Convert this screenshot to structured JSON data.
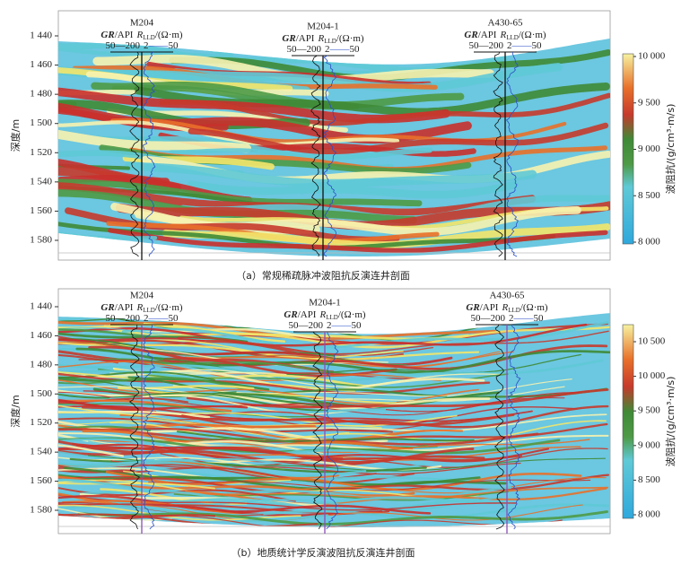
{
  "panels": [
    {
      "caption": "（a）常规稀疏脉冲波阻抗反演连井剖面",
      "y_axis_label": "深度/m",
      "depth_ticks": [
        {
          "value": 1440,
          "label": "1 440"
        },
        {
          "value": 1460,
          "label": "1 460"
        },
        {
          "value": 1480,
          "label": "1 480"
        },
        {
          "value": 1500,
          "label": "1 500"
        },
        {
          "value": 1520,
          "label": "1 520"
        },
        {
          "value": 1540,
          "label": "1 540"
        },
        {
          "value": 1560,
          "label": "1 560"
        },
        {
          "value": 1580,
          "label": "1 580"
        }
      ],
      "colorbar": {
        "label": "波阻抗/(g/cm³·m/s)",
        "ticks": [
          {
            "value": 8000,
            "label": "8 000"
          },
          {
            "value": 8500,
            "label": "8 500"
          },
          {
            "value": 9000,
            "label": "9 000"
          },
          {
            "value": 9500,
            "label": "9 500"
          },
          {
            "value": 10000,
            "label": "10 000"
          }
        ]
      },
      "wells": [
        {
          "name": "M204",
          "gr_label": "GR",
          "gr_unit": "/API",
          "rt_label": "R",
          "rt_sub": "LLD",
          "rt_unit": "/(Ω·m)",
          "gr_range": "50—200",
          "rt_min": "2",
          "rt_max": "50"
        },
        {
          "name": "M204-1",
          "gr_label": "GR",
          "gr_unit": "/API",
          "rt_label": "R",
          "rt_sub": "LLD",
          "rt_unit": "/(Ω·m)",
          "gr_range": "50—200",
          "rt_min": "2",
          "rt_max": "50"
        },
        {
          "name": "A430-65",
          "gr_label": "GR",
          "gr_unit": "/API",
          "rt_label": "R",
          "rt_sub": "LLD",
          "rt_unit": "/(Ω·m)",
          "gr_range": "50—200",
          "rt_min": "2",
          "rt_max": "50"
        }
      ]
    },
    {
      "caption": "（b）地质统计学反演波阻抗反演连井剖面",
      "y_axis_label": "深度/m",
      "depth_ticks": [
        {
          "value": 1440,
          "label": "1 440"
        },
        {
          "value": 1460,
          "label": "1 460"
        },
        {
          "value": 1480,
          "label": "1 480"
        },
        {
          "value": 1500,
          "label": "1 500"
        },
        {
          "value": 1520,
          "label": "1 520"
        },
        {
          "value": 1540,
          "label": "1 540"
        },
        {
          "value": 1560,
          "label": "1 560"
        },
        {
          "value": 1580,
          "label": "1 580"
        }
      ],
      "colorbar": {
        "label": "波阻抗/(g/cm³·m/s)",
        "ticks": [
          {
            "value": 8000,
            "label": "8 000"
          },
          {
            "value": 8500,
            "label": "8 500"
          },
          {
            "value": 9000,
            "label": "9 000"
          },
          {
            "value": 9500,
            "label": "9 500"
          },
          {
            "value": 10000,
            "label": "10 000"
          },
          {
            "value": 10500,
            "label": "10 500"
          }
        ]
      },
      "wells": [
        {
          "name": "M204",
          "gr_label": "GR",
          "gr_unit": "/API",
          "rt_label": "R",
          "rt_sub": "LLD",
          "rt_unit": "/(Ω·m)",
          "gr_range": "50—200",
          "rt_min": "2",
          "rt_max": "50"
        },
        {
          "name": "M204-1",
          "gr_label": "GR",
          "gr_unit": "/API",
          "rt_label": "R",
          "rt_sub": "LLD",
          "rt_unit": "/(Ω·m)",
          "gr_range": "50—200",
          "rt_min": "2",
          "rt_max": "50"
        },
        {
          "name": "A430-65",
          "gr_label": "GR",
          "gr_unit": "/API",
          "rt_label": "R",
          "rt_sub": "LLD",
          "rt_unit": "/(Ω·m)",
          "gr_range": "50—200",
          "rt_min": "2",
          "rt_max": "50"
        }
      ]
    }
  ]
}
